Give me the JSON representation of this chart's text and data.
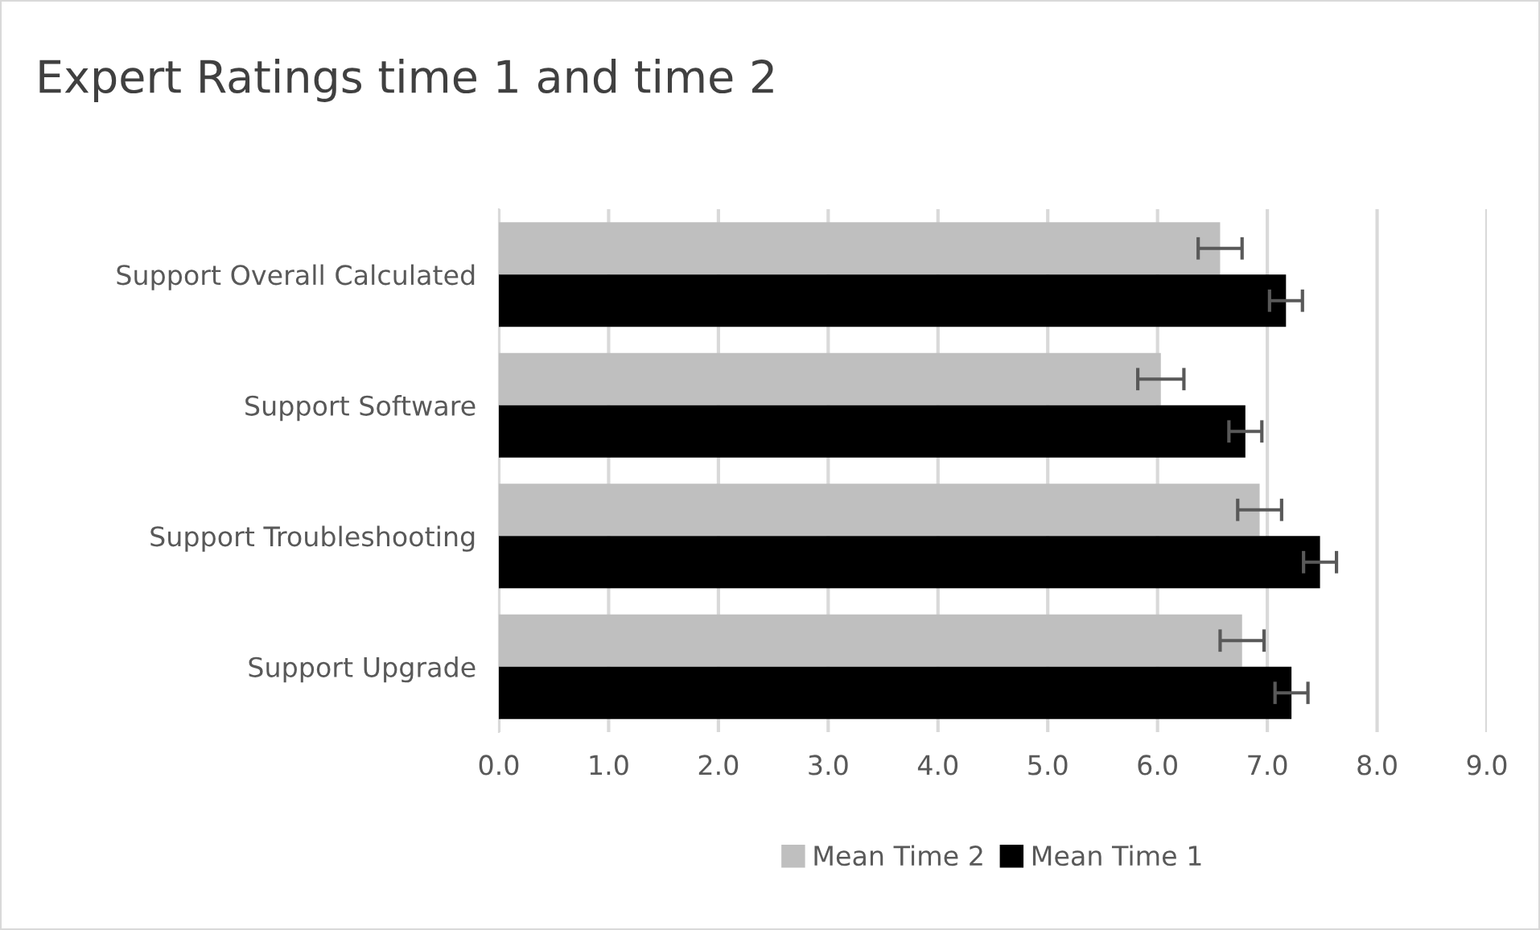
{
  "chart_data": {
    "type": "bar",
    "orientation": "horizontal",
    "title": "Expert Ratings time 1 and time 2",
    "categories": [
      "Support Overall Calculated",
      "Support Software",
      "Support Troubleshooting",
      "Support Upgrade"
    ],
    "series": [
      {
        "name": "Mean Time 2",
        "color": "#bfbfbf",
        "values": [
          6.57,
          6.03,
          6.93,
          6.77
        ],
        "errors": [
          0.2,
          0.21,
          0.2,
          0.2
        ]
      },
      {
        "name": "Mean Time 1",
        "color": "#000000",
        "values": [
          7.17,
          6.8,
          7.48,
          7.22
        ],
        "errors": [
          0.15,
          0.15,
          0.15,
          0.15
        ]
      }
    ],
    "xlim": [
      0,
      9
    ],
    "xticks": [
      {
        "value": 0,
        "label": "0.0"
      },
      {
        "value": 1,
        "label": "1.0"
      },
      {
        "value": 2,
        "label": "2.0"
      },
      {
        "value": 3,
        "label": "3.0"
      },
      {
        "value": 4,
        "label": "4.0"
      },
      {
        "value": 5,
        "label": "5.0"
      },
      {
        "value": 6,
        "label": "6.0"
      },
      {
        "value": 7,
        "label": "7.0"
      },
      {
        "value": 8,
        "label": "8.0"
      },
      {
        "value": 9,
        "label": "9.0"
      }
    ],
    "grid": "x",
    "legend": "bottom"
  }
}
